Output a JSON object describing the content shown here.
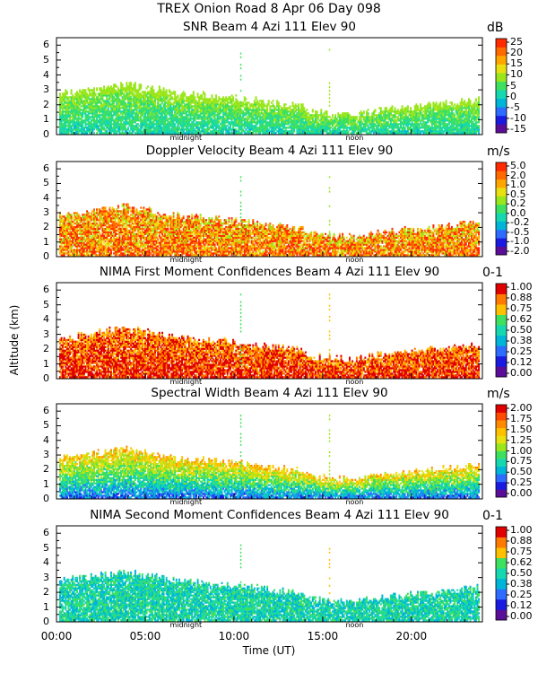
{
  "header": {
    "line1": "TREX Onion Road   8 Apr 06 Day 098"
  },
  "colors": {
    "palette11": [
      "#5a0d96",
      "#1a1ae0",
      "#2d6cff",
      "#00b5d8",
      "#16d8b0",
      "#3ee060",
      "#9ae61d",
      "#e8e010",
      "#ffa500",
      "#ff6a00",
      "#ff2a00"
    ],
    "palette12": [
      "#5a0d96",
      "#1a1ae0",
      "#2d6cff",
      "#00b5d8",
      "#16d8b0",
      "#3ee060",
      "#9ae61d",
      "#e8e010",
      "#ffc000",
      "#ff8a00",
      "#ff4a00",
      "#e00000"
    ],
    "palette9": [
      "#5a0d96",
      "#1a1ae0",
      "#2d6cff",
      "#00b5d8",
      "#16d8b0",
      "#3ee060",
      "#ffc000",
      "#ff7a00",
      "#e00000"
    ]
  },
  "chart_data": [
    {
      "type": "heatmap",
      "title": "SNR Beam 4 Azi 111 Elev 90",
      "unit": "dB",
      "ylabel": "Altitude (km)",
      "xlabel": "Time (UT)",
      "ylim": [
        0,
        6.5
      ],
      "xlim": [
        0,
        24
      ],
      "yticks": [
        "0",
        "1",
        "2",
        "3",
        "4",
        "5",
        "6"
      ],
      "colorbar": [
        "25",
        "20",
        "15",
        "10",
        "5",
        "0",
        "-5",
        "-10",
        "-15"
      ],
      "palette": "palette11",
      "markers": [
        "midnight",
        "noon"
      ]
    },
    {
      "type": "heatmap",
      "title": "Doppler Velocity Beam 4 Azi 111 Elev 90",
      "unit": "m/s",
      "ylim": [
        0,
        6.5
      ],
      "xlim": [
        0,
        24
      ],
      "yticks": [
        "0",
        "1",
        "2",
        "3",
        "4",
        "5",
        "6"
      ],
      "colorbar": [
        "5.0",
        "2.0",
        "1.0",
        "0.5",
        "0.2",
        "0.0",
        "-0.2",
        "-0.5",
        "-1.0",
        "-2.0"
      ],
      "palette": "palette11",
      "markers": [
        "midnight",
        "noon"
      ]
    },
    {
      "type": "heatmap",
      "title": "NIMA First Moment Confidences Beam 4 Azi 111 Elev 90",
      "unit": "0-1",
      "ylim": [
        0,
        6.5
      ],
      "xlim": [
        0,
        24
      ],
      "yticks": [
        "0",
        "1",
        "2",
        "3",
        "4",
        "5",
        "6"
      ],
      "colorbar": [
        "1.00",
        "0.88",
        "0.75",
        "0.62",
        "0.50",
        "0.38",
        "0.25",
        "0.12",
        "0.00"
      ],
      "palette": "palette9",
      "markers": [
        "midnight",
        "noon"
      ]
    },
    {
      "type": "heatmap",
      "title": "Spectral Width Beam 4 Azi 111 Elev 90",
      "unit": "m/s",
      "ylim": [
        0,
        6.5
      ],
      "xlim": [
        0,
        24
      ],
      "yticks": [
        "0",
        "1",
        "2",
        "3",
        "4",
        "5",
        "6"
      ],
      "colorbar": [
        "2.00",
        "1.75",
        "1.50",
        "1.25",
        "1.00",
        "0.75",
        "0.50",
        "0.25",
        "0.00"
      ],
      "palette": "palette12",
      "markers": [
        "midnight",
        "noon"
      ]
    },
    {
      "type": "heatmap",
      "title": "NIMA Second Moment Confidences Beam 4 Azi 111 Elev 90",
      "unit": "0-1",
      "ylim": [
        0,
        6.5
      ],
      "xlim": [
        0,
        24
      ],
      "yticks": [
        "0",
        "1",
        "2",
        "3",
        "4",
        "5",
        "6"
      ],
      "colorbar": [
        "1.00",
        "0.88",
        "0.75",
        "0.62",
        "0.50",
        "0.38",
        "0.25",
        "0.12",
        "0.00"
      ],
      "palette": "palette9",
      "markers": [
        "midnight",
        "noon"
      ]
    }
  ],
  "xaxis": {
    "ticks": [
      "00:00",
      "05:00",
      "10:00",
      "15:00",
      "20:00"
    ],
    "tick_hours": [
      0,
      5,
      10,
      15,
      20
    ],
    "label": "Time (UT)"
  },
  "yaxis_label": "Altitude (km)"
}
